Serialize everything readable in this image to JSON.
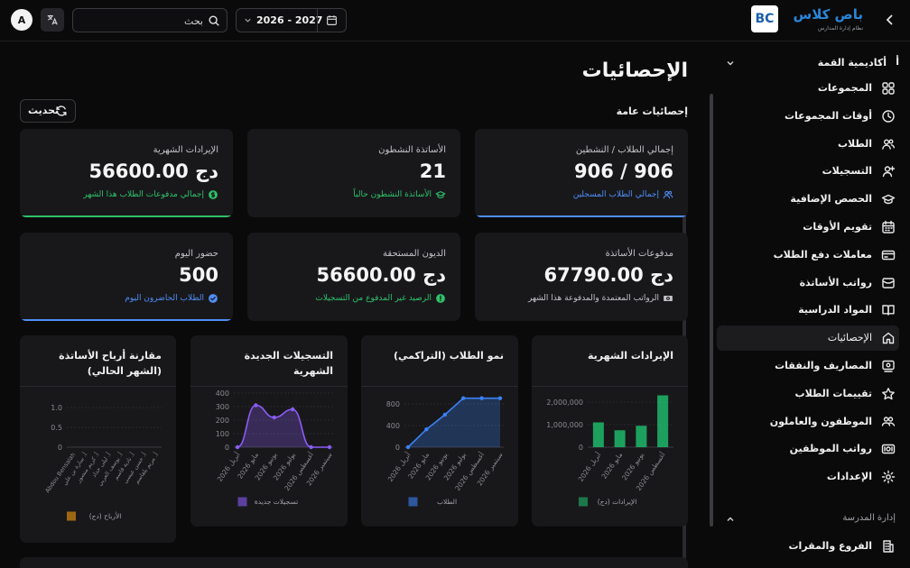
{
  "header": {
    "avatar_letter": "A",
    "search_placeholder": "بحث",
    "year_range": "2026 - 2027",
    "logo_title": "باص كلاس",
    "logo_subtitle": "نظام إدارة المدارس",
    "logo_mark": "BC"
  },
  "sidebar": {
    "academy": "أكاديمية القمة",
    "academy_icon": "أ",
    "items": [
      {
        "label": "المجموعات",
        "icon": "grid-icon"
      },
      {
        "label": "أوقات المجموعات",
        "icon": "clock-icon"
      },
      {
        "label": "الطلاب",
        "icon": "users-icon"
      },
      {
        "label": "التسجيلات",
        "icon": "user-plus-icon"
      },
      {
        "label": "الحصص الإضافية",
        "icon": "graduation-cap-icon"
      },
      {
        "label": "تقويم الأوقات",
        "icon": "calendar-icon"
      },
      {
        "label": "معاملات دفع الطلاب",
        "icon": "credit-card-icon"
      },
      {
        "label": "رواتب الأساتذة",
        "icon": "wallet-icon"
      },
      {
        "label": "المواد الدراسية",
        "icon": "book-icon"
      },
      {
        "label": "الإحصائيات",
        "icon": "home-icon"
      },
      {
        "label": "المصاريف والنفقات",
        "icon": "receipt-icon"
      },
      {
        "label": "تقييمات الطلاب",
        "icon": "star-icon"
      },
      {
        "label": "الموظفون والعاملون",
        "icon": "staff-icon"
      },
      {
        "label": "رواتب الموظفين",
        "icon": "money-icon"
      },
      {
        "label": "الإعدادات",
        "icon": "settings-icon"
      }
    ],
    "active_index": 9,
    "section_label": "إدارة المدرسة",
    "section_items": [
      {
        "label": "الفروع والمقرات",
        "icon": "building-icon"
      }
    ]
  },
  "main": {
    "title": "الإحصائيات",
    "section_title": "إحصائيات عامة",
    "refresh_label": "تحديث",
    "cards": [
      {
        "label": "إجمالي الطلاب / النشطين",
        "value": "906 / 906",
        "sub": "إجمالي الطلاب المسجلين",
        "sub_color": "#4f8ef7",
        "sub_icon": "users-icon",
        "line_color": "#4f8ef7"
      },
      {
        "label": "الأساتذة النشطون",
        "value": "21",
        "sub": "الأساتذة النشطون حالياً",
        "sub_color": "#2fc26b",
        "sub_icon": "graduation-cap-icon",
        "line_color": ""
      },
      {
        "label": "الإيرادات الشهرية",
        "value": "56600.00 دج",
        "sub": "إجمالي مدفوعات الطلاب هذا الشهر",
        "sub_color": "#2fc26b",
        "sub_icon": "dollar-circle-icon",
        "line_color": "#2fc26b"
      },
      {
        "label": "مدفوعات الأساتذة",
        "value": "67790.00 دج",
        "sub": "الرواتب المعتمدة والمدفوعة هذا الشهر",
        "sub_color": "#c4c4c8",
        "sub_icon": "cash-icon",
        "line_color": ""
      },
      {
        "label": "الديون المستحقة",
        "value": "56600.00 دج",
        "sub": "الرصيد غير المدفوع من التسجيلات",
        "sub_color": "#2fc26b",
        "sub_icon": "alert-circle-icon",
        "line_color": ""
      },
      {
        "label": "حضور اليوم",
        "value": "500",
        "sub": "الطلاب الحاضرون اليوم",
        "sub_color": "#4f8ef7",
        "sub_icon": "check-circle-icon",
        "line_color": "#4f8ef7"
      }
    ]
  },
  "chart_data": [
    {
      "type": "bar",
      "title": "الإيرادات الشهرية",
      "categories": [
        "أبريل 2026",
        "مايو 2026",
        "يونيو 2026",
        "أغسطس 2026"
      ],
      "values": [
        1100000,
        750000,
        950000,
        2300000
      ],
      "yticks": [
        "2,000,000",
        "1,000,000",
        "0"
      ],
      "ylim": [
        0,
        2400000
      ],
      "legend": "الإيرادات (دج)",
      "color": "#1fb86a"
    },
    {
      "type": "line",
      "title": "نمو الطلاب (التراكمي)",
      "categories": [
        "أبريل 2026",
        "مايو 2026",
        "يونيو 2026",
        "يوليو 2026",
        "أغسطس 2026",
        "سبتمبر 2026"
      ],
      "values": [
        0,
        330,
        600,
        906,
        906,
        906
      ],
      "yticks": [
        "800",
        "400",
        "0"
      ],
      "ylim": [
        0,
        1000
      ],
      "legend": "الطلاب",
      "color": "#3b82f6"
    },
    {
      "type": "area",
      "title": "التسجيلات الجديدة الشهرية",
      "categories": [
        "أبريل 2026",
        "مايو 2026",
        "يونيو 2026",
        "يوليو 2026",
        "أغسطس 2026",
        "سبتمبر 2026"
      ],
      "values": [
        0,
        310,
        220,
        280,
        0,
        0
      ],
      "yticks": [
        "400",
        "300",
        "200",
        "100",
        "0"
      ],
      "ylim": [
        0,
        400
      ],
      "legend": "تسجيلات جديدة",
      "color": "#8b5cf6"
    },
    {
      "type": "bar",
      "title": "مقارنة أرباح الأساتذة (الشهر الحالي)",
      "categories": [
        "Abdou Bensalah",
        "أ. سارة بن علي",
        "أ. كريم منصور",
        "أ. ليلى حداد",
        "أ. يوسف العربي",
        "أ. نادية قاسم",
        "أ. حسن عيسى",
        "أ. مريم بلقاسم"
      ],
      "values": [
        0,
        0,
        0,
        0,
        0,
        0,
        0,
        0
      ],
      "yticks": [
        "1.0",
        "0.5",
        "0"
      ],
      "ylim": [
        0,
        1
      ],
      "legend": "الأرباح (دج)",
      "color": "#f59e0b"
    }
  ]
}
